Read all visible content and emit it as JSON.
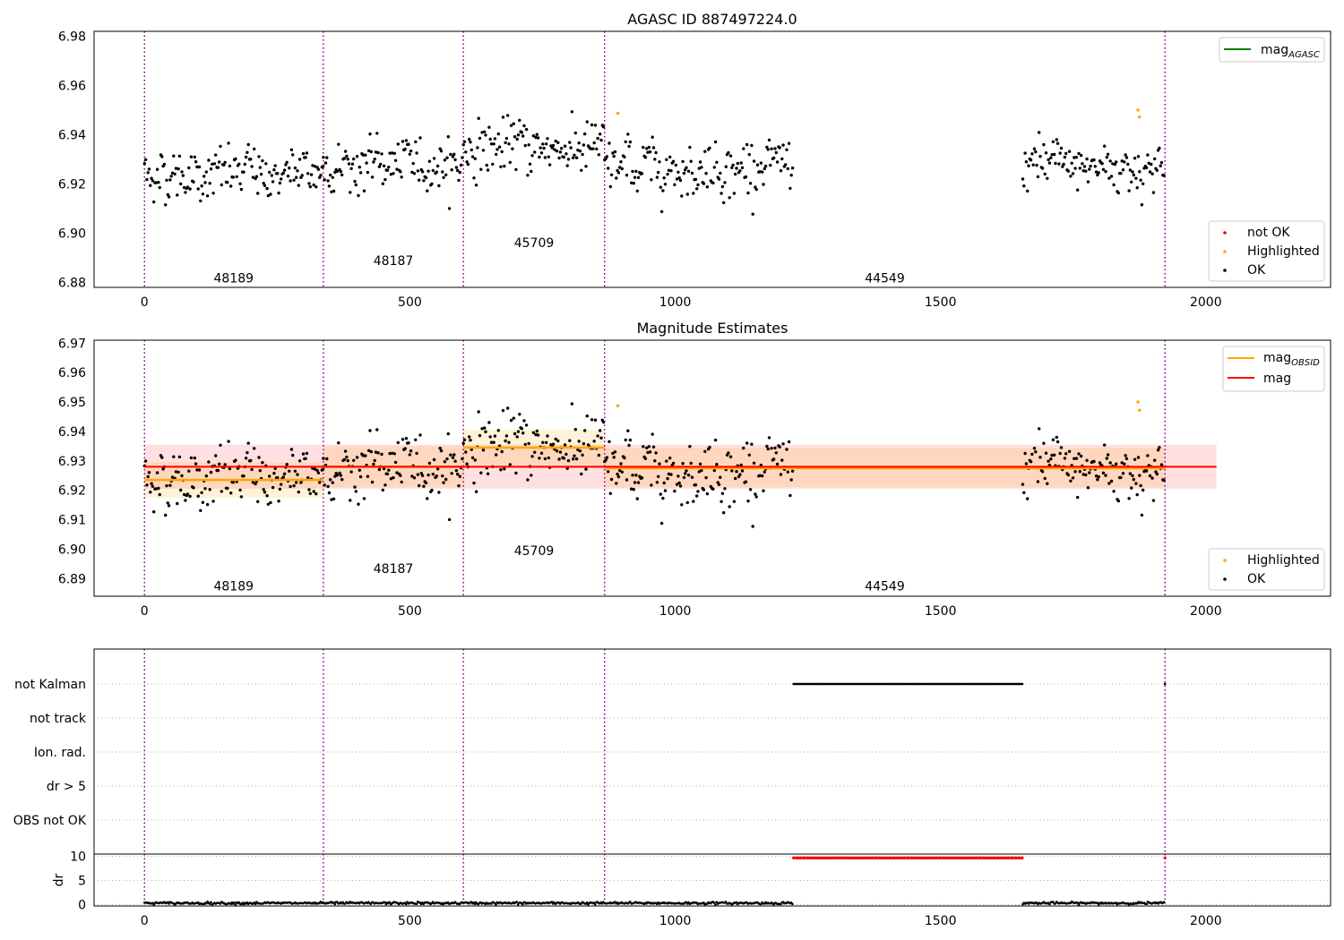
{
  "colors": {
    "ok": "#000000",
    "highlighted": "#ffa500",
    "not_ok": "#ff0000",
    "mag_agasc": "#008000",
    "mag_obsid": "#ffa500",
    "mag": "#ff0000",
    "obs_divider": "#800080",
    "grid": "#b0b0b0"
  },
  "chart_data": [
    {
      "type": "scatter",
      "title": "AGASC ID 887497224.0",
      "xlim": [
        -95,
        2235
      ],
      "ylim": [
        6.878,
        6.982
      ],
      "xticks": [
        "0",
        "500",
        "1000",
        "1500",
        "2000"
      ],
      "yticks": [
        "6.88",
        "6.90",
        "6.92",
        "6.94",
        "6.96",
        "6.98"
      ],
      "legend_lines": [
        {
          "label": "mag",
          "subscript": "AGASC",
          "color": "#008000"
        }
      ],
      "legend_points": [
        {
          "label": "not OK",
          "color": "#ff0000"
        },
        {
          "label": "Highlighted",
          "color": "#ffa500"
        },
        {
          "label": "OK",
          "color": "#000000"
        }
      ],
      "obs_boundaries": [
        0,
        337,
        601,
        867,
        1923
      ],
      "obs_labels": [
        {
          "text": "48189",
          "x": 168,
          "y": 6.8818
        },
        {
          "text": "48187",
          "x": 469,
          "y": 6.889
        },
        {
          "text": "45709",
          "x": 734,
          "y": 6.8962
        },
        {
          "text": "44549",
          "x": 1395,
          "y": 6.8818
        }
      ],
      "segments": [
        {
          "start": 0,
          "end": 337,
          "mean": 6.924,
          "sd": 0.0065
        },
        {
          "start": 337,
          "end": 601,
          "mean": 6.928,
          "sd": 0.0065
        },
        {
          "start": 601,
          "end": 867,
          "mean": 6.935,
          "sd": 0.0065
        },
        {
          "start": 867,
          "end": 1223,
          "mean": 6.927,
          "sd": 0.0065
        },
        {
          "start": 1655,
          "end": 1923,
          "mean": 6.927,
          "sd": 0.0065
        }
      ],
      "highlighted_points": [
        [
          892,
          6.9487
        ],
        [
          1872,
          6.95
        ],
        [
          1875,
          6.9472
        ]
      ]
    },
    {
      "type": "scatter",
      "title": "Magnitude Estimates",
      "xlim": [
        -95,
        2235
      ],
      "ylim": [
        6.884,
        6.971
      ],
      "xticks": [
        "0",
        "500",
        "1000",
        "1500",
        "2000"
      ],
      "yticks": [
        "6.89",
        "6.90",
        "6.91",
        "6.92",
        "6.93",
        "6.94",
        "6.95",
        "6.96",
        "6.97"
      ],
      "legend_lines": [
        {
          "label": "mag",
          "subscript": "OBSID",
          "color": "#ffa500"
        },
        {
          "label": "mag",
          "subscript": "",
          "color": "#ff0000"
        }
      ],
      "legend_points": [
        {
          "label": "Highlighted",
          "color": "#ffa500"
        },
        {
          "label": "OK",
          "color": "#000000"
        }
      ],
      "mag": {
        "value": 6.928,
        "low": 6.9205,
        "high": 6.9355,
        "x0": 0,
        "x1": 2020
      },
      "obsid_means": [
        {
          "x0": 0,
          "x1": 337,
          "value": 6.9235,
          "low": 6.9175,
          "high": 6.9295
        },
        {
          "x0": 337,
          "x1": 601,
          "value": 6.928,
          "low": 6.921,
          "high": 6.935
        },
        {
          "x0": 601,
          "x1": 867,
          "value": 6.9345,
          "low": 6.9275,
          "high": 6.9405
        },
        {
          "x0": 867,
          "x1": 1923,
          "value": 6.9275,
          "low": 6.921,
          "high": 6.9345
        }
      ],
      "obs_boundaries": [
        0,
        337,
        601,
        867,
        1923
      ],
      "obs_labels": [
        {
          "text": "48189",
          "x": 168,
          "y": 6.8875
        },
        {
          "text": "48187",
          "x": 469,
          "y": 6.8935
        },
        {
          "text": "45709",
          "x": 734,
          "y": 6.8995
        },
        {
          "text": "44549",
          "x": 1395,
          "y": 6.8875
        }
      ],
      "segments": [
        {
          "start": 0,
          "end": 337,
          "mean": 6.924,
          "sd": 0.0065
        },
        {
          "start": 337,
          "end": 601,
          "mean": 6.928,
          "sd": 0.0065
        },
        {
          "start": 601,
          "end": 867,
          "mean": 6.935,
          "sd": 0.0065
        },
        {
          "start": 867,
          "end": 1223,
          "mean": 6.927,
          "sd": 0.0065
        },
        {
          "start": 1655,
          "end": 1923,
          "mean": 6.927,
          "sd": 0.0065
        }
      ],
      "highlighted_points": [
        [
          892,
          6.9487
        ],
        [
          1872,
          6.95
        ],
        [
          1875,
          6.9472
        ]
      ]
    },
    {
      "type": "scatter",
      "title": "",
      "xlim": [
        -95,
        2235
      ],
      "categories": [
        "not Kalman",
        "not track",
        "Ion. rad.",
        "dr > 5",
        "OBS not OK"
      ],
      "flags": {
        "not Kalman": [
          {
            "x0": 1223,
            "x1": 1655
          },
          {
            "x0": 1923,
            "x1": 1923
          }
        ]
      },
      "obs_boundaries": [
        0,
        337,
        601,
        867,
        1923
      ]
    },
    {
      "type": "scatter",
      "title": "",
      "ylabel": "dr",
      "xlim": [
        -95,
        2235
      ],
      "ylim": [
        -0.3,
        10.5
      ],
      "xticks": [
        "0",
        "500",
        "1000",
        "1500",
        "2000"
      ],
      "yticks": [
        "0",
        "5",
        "10"
      ],
      "ok_segments": [
        {
          "x0": 0,
          "x1": 1223,
          "level": 0.3
        },
        {
          "x0": 1655,
          "x1": 1923,
          "level": 0.3
        }
      ],
      "not_ok_segments": [
        {
          "x0": 1223,
          "x1": 1655,
          "level": 9.7
        },
        {
          "x0": 1923,
          "x1": 1923,
          "level": 9.7
        }
      ],
      "obs_boundaries": [
        0,
        337,
        601,
        867,
        1923
      ]
    }
  ]
}
